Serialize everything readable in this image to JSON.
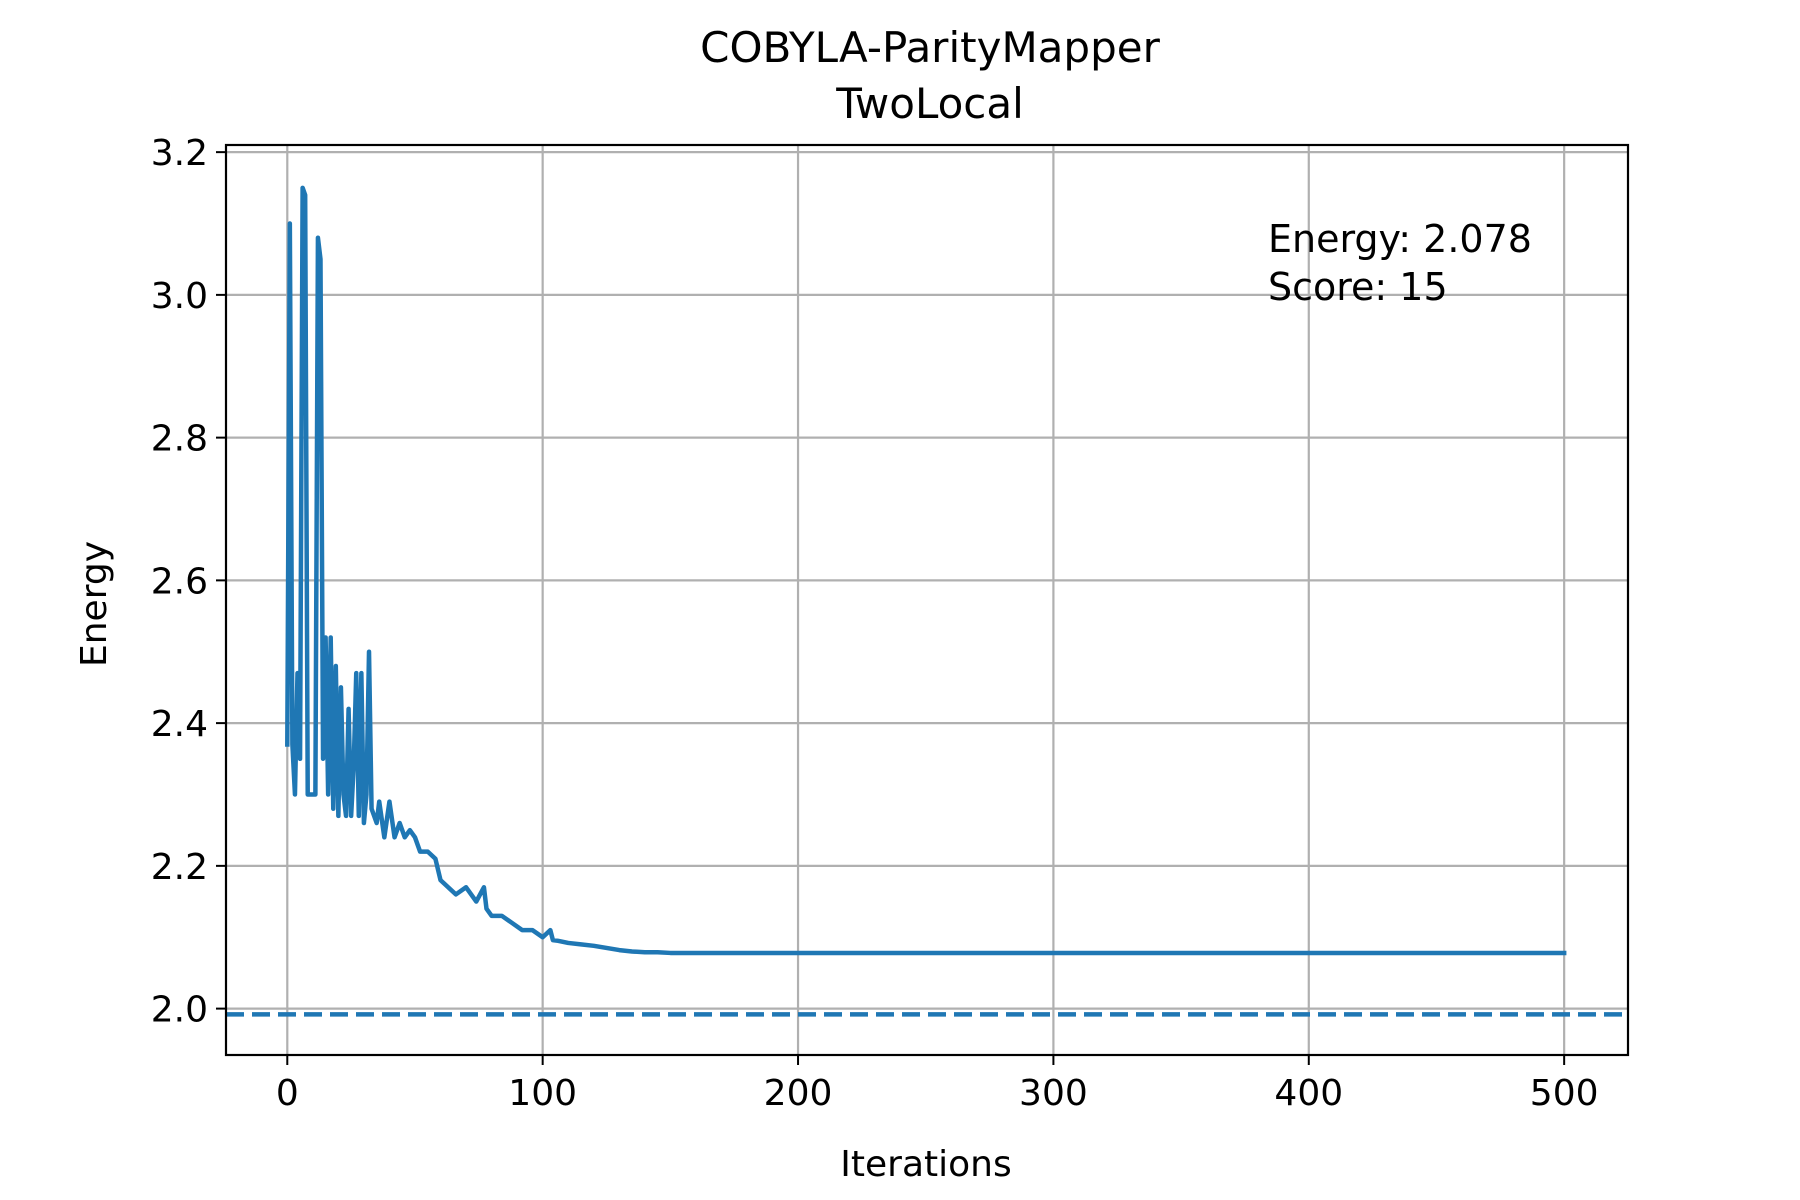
{
  "chart_data": {
    "type": "line",
    "title": "COBYLA-ParityMapper",
    "subtitle": "TwoLocal",
    "xlabel": "Iterations",
    "ylabel": "Energy",
    "xlim": [
      -24,
      525
    ],
    "ylim": [
      1.935,
      3.21
    ],
    "xticks": [
      0,
      100,
      200,
      300,
      400,
      500
    ],
    "yticks": [
      2.0,
      2.2,
      2.4,
      2.6,
      2.8,
      3.0,
      3.2
    ],
    "xtick_labels": [
      "0",
      "100",
      "200",
      "300",
      "400",
      "500"
    ],
    "ytick_labels": [
      "2.0",
      "2.2",
      "2.4",
      "2.6",
      "2.8",
      "3.0",
      "3.2"
    ],
    "grid": true,
    "annotations": [
      "Energy: 2.078",
      "Score: 15"
    ],
    "reference_line": {
      "y": 1.992,
      "style": "dashed",
      "color": "#1f77b4"
    },
    "series": [
      {
        "color": "#1f77b4",
        "x": [
          0,
          1,
          2,
          3,
          4,
          5,
          6,
          7,
          8,
          9,
          10,
          11,
          12,
          13,
          14,
          15,
          16,
          17,
          18,
          19,
          20,
          21,
          22,
          23,
          24,
          25,
          26,
          27,
          28,
          29,
          30,
          31,
          32,
          33,
          34,
          35,
          36,
          38,
          40,
          42,
          44,
          46,
          48,
          50,
          52,
          55,
          58,
          60,
          63,
          66,
          70,
          74,
          77,
          78,
          80,
          84,
          88,
          92,
          96,
          100,
          103,
          104,
          106,
          110,
          115,
          120,
          125,
          130,
          135,
          140,
          145,
          150,
          160,
          170,
          180,
          200,
          250,
          300,
          400,
          500
        ],
        "y": [
          2.37,
          3.1,
          2.37,
          2.3,
          2.47,
          2.35,
          3.15,
          3.14,
          2.3,
          2.3,
          2.3,
          2.3,
          3.08,
          3.05,
          2.35,
          2.52,
          2.3,
          2.52,
          2.28,
          2.48,
          2.27,
          2.45,
          2.3,
          2.27,
          2.42,
          2.27,
          2.34,
          2.47,
          2.27,
          2.47,
          2.26,
          2.3,
          2.5,
          2.28,
          2.27,
          2.26,
          2.29,
          2.24,
          2.29,
          2.24,
          2.26,
          2.24,
          2.25,
          2.24,
          2.22,
          2.22,
          2.21,
          2.18,
          2.17,
          2.16,
          2.17,
          2.15,
          2.17,
          2.14,
          2.13,
          2.13,
          2.12,
          2.11,
          2.11,
          2.1,
          2.11,
          2.096,
          2.095,
          2.092,
          2.09,
          2.088,
          2.085,
          2.082,
          2.08,
          2.079,
          2.079,
          2.078,
          2.078,
          2.078,
          2.078,
          2.078,
          2.078,
          2.078,
          2.078,
          2.078
        ]
      }
    ]
  }
}
